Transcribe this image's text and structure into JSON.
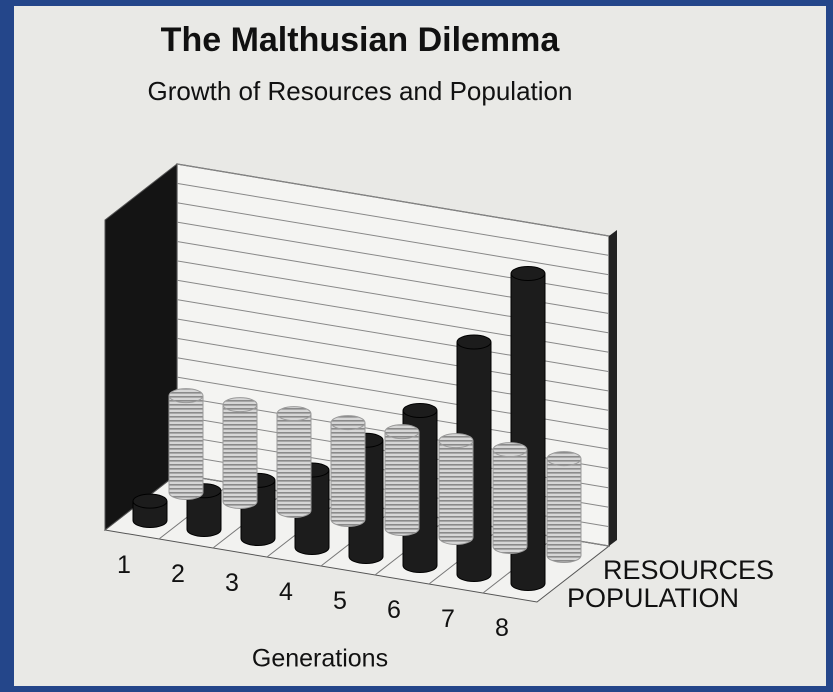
{
  "chart_data": {
    "type": "bar3d",
    "title": "The Malthusian Dilemma",
    "subtitle": "Growth of Resources and Population",
    "x_label": "Generations",
    "categories": [
      "1",
      "2",
      "3",
      "4",
      "5",
      "6",
      "7",
      "8"
    ],
    "series": [
      {
        "name": "RESOURCES",
        "color": "#b8b8b8",
        "values": [
          5,
          5,
          5,
          5,
          5,
          5,
          5,
          5
        ]
      },
      {
        "name": "POPULATION",
        "color": "#1c1c1c",
        "values": [
          1,
          2,
          3,
          4,
          6,
          8,
          12,
          16
        ]
      }
    ],
    "ylim": [
      0,
      16
    ],
    "yticks": [
      0,
      1,
      2,
      3,
      4,
      5,
      6,
      7,
      8,
      9,
      10,
      11,
      12,
      13,
      14,
      15,
      16
    ],
    "grid": true
  }
}
